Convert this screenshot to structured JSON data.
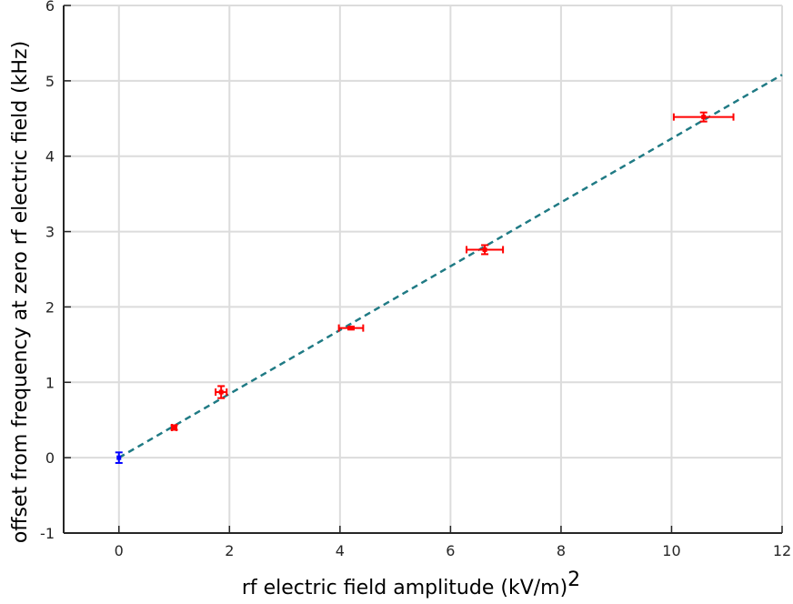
{
  "chart_data": {
    "type": "scatter",
    "xlabel": "rf electric field amplitude (kV/m)",
    "xlabel_superscript": "2",
    "ylabel": "offset from frequency at zero rf electric field (kHz)",
    "xlim": [
      -1,
      12
    ],
    "ylim": [
      -1,
      6
    ],
    "xticks": [
      0,
      2,
      4,
      6,
      8,
      10,
      12
    ],
    "yticks": [
      -1,
      0,
      1,
      2,
      3,
      4,
      5,
      6
    ],
    "grid": true,
    "series": [
      {
        "color": "#0000ff",
        "points": [
          {
            "x": 0.0,
            "y": 0.0,
            "x_err": 0.0,
            "y_err": 0.07
          }
        ]
      },
      {
        "color": "#ff0000",
        "points": [
          {
            "x": 1.0,
            "y": 0.4,
            "x_err": 0.04,
            "y_err": 0.03
          },
          {
            "x": 1.85,
            "y": 0.87,
            "x_err": 0.1,
            "y_err": 0.08
          },
          {
            "x": 4.2,
            "y": 1.72,
            "x_err": 0.22,
            "y_err": 0.02
          },
          {
            "x": 6.62,
            "y": 2.76,
            "x_err": 0.33,
            "y_err": 0.06
          },
          {
            "x": 10.58,
            "y": 4.52,
            "x_err": 0.54,
            "y_err": 0.06
          }
        ]
      },
      {
        "type": "line",
        "style": "dashed",
        "color": "#1f7a84",
        "x": [
          0,
          12
        ],
        "y": [
          0,
          5.08
        ]
      }
    ]
  }
}
